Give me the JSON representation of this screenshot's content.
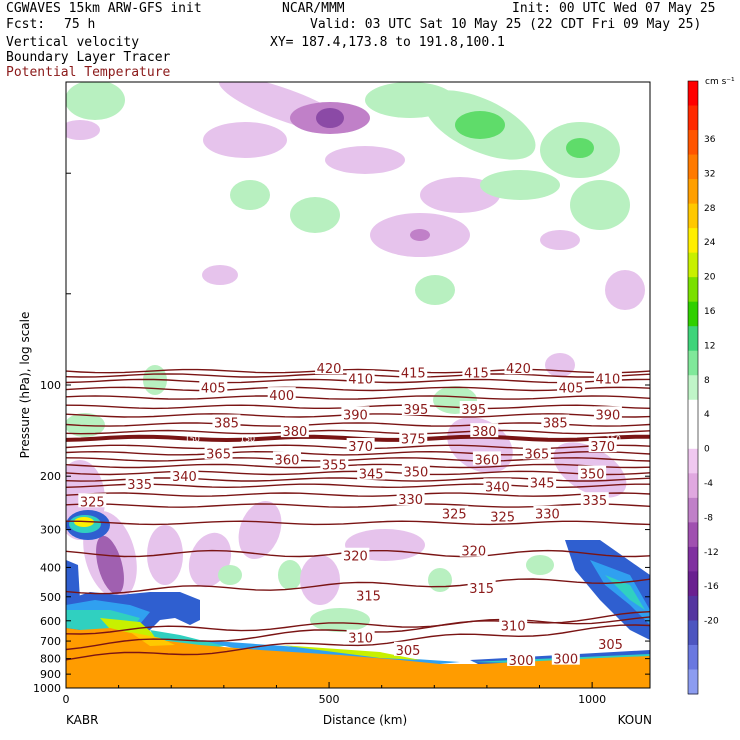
{
  "header": {
    "model": "CGWAVES 15km ARW-GFS init",
    "fcst_label": "Fcst:",
    "fcst_value": "75 h",
    "center": "NCAR/MMM",
    "init": "Init: 00 UTC Wed 07 May 25",
    "valid": "Valid: 03 UTC Sat 10 May 25 (22 CDT Fri 09 May 25)",
    "xy": "XY= 187.4,173.8 to 191.8,100.1",
    "field1": "Vertical velocity",
    "field2": "Boundary Layer Tracer",
    "field3": "Potential Temperature",
    "field3_color": "#8b1a1a"
  },
  "chart_data": {
    "type": "heatmap",
    "xlabel": "Distance (km)",
    "ylabel": "Pressure (hPa), log scale",
    "xlim": [
      0,
      1110
    ],
    "ylim": [
      1000,
      10
    ],
    "x_ticks": [
      0,
      500,
      1000
    ],
    "x_end_labels": {
      "left": "KABR",
      "right": "KOUN"
    },
    "y_ticks": [
      100,
      200,
      300,
      400,
      500,
      600,
      700,
      800,
      900,
      1000
    ],
    "colorbar": {
      "units": "cm s⁻¹",
      "ticks": [
        36,
        32,
        28,
        24,
        20,
        16,
        12,
        8,
        4,
        0,
        -4,
        -8,
        -12,
        -16,
        -20
      ],
      "colors": [
        "#ff0000",
        "#ff2a00",
        "#ff5500",
        "#ff7a00",
        "#ff9f00",
        "#ffc800",
        "#ffef00",
        "#c8f000",
        "#7ae000",
        "#30d000",
        "#3fd47a",
        "#80e89a",
        "#c0f5c8",
        "#ffffff",
        "#ffffff",
        "#f0c8f0",
        "#e0a8e0",
        "#c080c8",
        "#a050b0",
        "#8030a0",
        "#6a2090",
        "#5535a0",
        "#4d55c0",
        "#6a78e0",
        "#8c9cf0"
      ]
    },
    "theta_contours": [
      {
        "value": 420,
        "p": 90
      },
      {
        "value": 415,
        "p": 93
      },
      {
        "value": 410,
        "p": 97
      },
      {
        "value": 405,
        "p": 103
      },
      {
        "value": 400,
        "p": 110
      },
      {
        "value": 395,
        "p": 118
      },
      {
        "value": 390,
        "p": 126
      },
      {
        "value": 385,
        "p": 135
      },
      {
        "value": 380,
        "p": 143
      },
      {
        "value": 375,
        "p": 150
      },
      {
        "value": 370,
        "p": 160
      },
      {
        "value": 365,
        "p": 168
      },
      {
        "value": 360,
        "p": 176
      },
      {
        "value": 355,
        "p": 185
      },
      {
        "value": 350,
        "p": 195
      },
      {
        "value": 345,
        "p": 205
      },
      {
        "value": 340,
        "p": 215
      },
      {
        "value": 335,
        "p": 230
      },
      {
        "value": 330,
        "p": 250
      },
      {
        "value": 325,
        "p": 285
      },
      {
        "value": 320,
        "p": 360
      },
      {
        "value": 315,
        "p": 480
      },
      {
        "value": 310,
        "p": 650
      },
      {
        "value": 305,
        "p": 730
      },
      {
        "value": 300,
        "p": 800
      }
    ],
    "contour_labels": [
      {
        "text": "420",
        "x": 500,
        "p": 88
      },
      {
        "text": "415",
        "x": 660,
        "p": 91
      },
      {
        "text": "415",
        "x": 780,
        "p": 91
      },
      {
        "text": "420",
        "x": 860,
        "p": 88
      },
      {
        "text": "410",
        "x": 560,
        "p": 95
      },
      {
        "text": "410",
        "x": 1030,
        "p": 95
      },
      {
        "text": "405",
        "x": 280,
        "p": 102
      },
      {
        "text": "405",
        "x": 960,
        "p": 102
      },
      {
        "text": "400",
        "x": 410,
        "p": 108
      },
      {
        "text": "390",
        "x": 550,
        "p": 125
      },
      {
        "text": "395",
        "x": 665,
        "p": 120
      },
      {
        "text": "395",
        "x": 775,
        "p": 120
      },
      {
        "text": "390",
        "x": 1030,
        "p": 125
      },
      {
        "text": "385",
        "x": 305,
        "p": 133
      },
      {
        "text": "385",
        "x": 930,
        "p": 133
      },
      {
        "text": "380",
        "x": 435,
        "p": 142
      },
      {
        "text": "380",
        "x": 795,
        "p": 142
      },
      {
        "text": "375",
        "x": 660,
        "p": 150
      },
      {
        "text": "370",
        "x": 560,
        "p": 159
      },
      {
        "text": "370",
        "x": 1020,
        "p": 159
      },
      {
        "text": "365",
        "x": 290,
        "p": 168
      },
      {
        "text": "365",
        "x": 895,
        "p": 168
      },
      {
        "text": "360",
        "x": 420,
        "p": 176
      },
      {
        "text": "360",
        "x": 800,
        "p": 176
      },
      {
        "text": "355",
        "x": 510,
        "p": 183
      },
      {
        "text": "350",
        "x": 665,
        "p": 193
      },
      {
        "text": "350",
        "x": 1000,
        "p": 196
      },
      {
        "text": "345",
        "x": 580,
        "p": 196
      },
      {
        "text": "345",
        "x": 905,
        "p": 210
      },
      {
        "text": "340",
        "x": 225,
        "p": 200
      },
      {
        "text": "340",
        "x": 820,
        "p": 216
      },
      {
        "text": "335",
        "x": 140,
        "p": 212
      },
      {
        "text": "335",
        "x": 1005,
        "p": 240
      },
      {
        "text": "330",
        "x": 655,
        "p": 238
      },
      {
        "text": "330",
        "x": 915,
        "p": 266
      },
      {
        "text": "325",
        "x": 50,
        "p": 242
      },
      {
        "text": "325",
        "x": 738,
        "p": 266
      },
      {
        "text": "325",
        "x": 830,
        "p": 272
      },
      {
        "text": "320",
        "x": 550,
        "p": 366
      },
      {
        "text": "320",
        "x": 775,
        "p": 352
      },
      {
        "text": "315",
        "x": 575,
        "p": 496
      },
      {
        "text": "315",
        "x": 790,
        "p": 468
      },
      {
        "text": "310",
        "x": 560,
        "p": 682
      },
      {
        "text": "310",
        "x": 850,
        "p": 622
      },
      {
        "text": "305",
        "x": 650,
        "p": 748
      },
      {
        "text": "305",
        "x": 1035,
        "p": 715
      },
      {
        "text": "300",
        "x": 865,
        "p": 808
      },
      {
        "text": "300",
        "x": 950,
        "p": 800
      }
    ],
    "tropopause_labels": [
      {
        "text": "150",
        "x": 240,
        "p": 150
      },
      {
        "text": "150",
        "x": 345,
        "p": 150
      },
      {
        "text": "150",
        "x": 1040,
        "p": 150
      }
    ]
  }
}
